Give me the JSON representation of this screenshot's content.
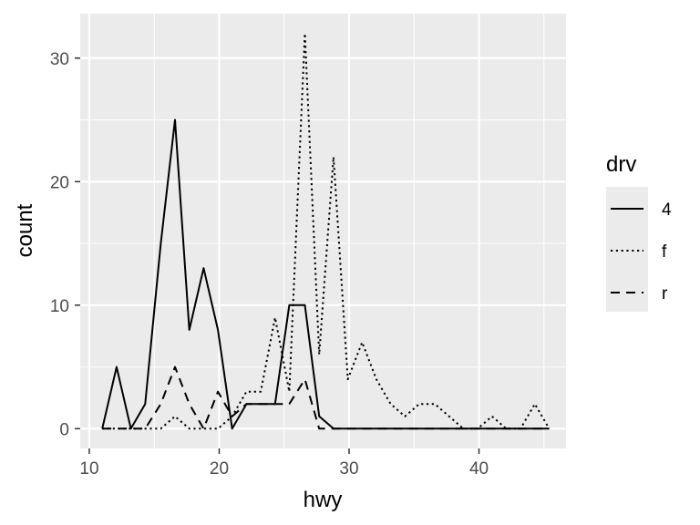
{
  "chart_data": {
    "type": "line",
    "xlabel": "hwy",
    "ylabel": "count",
    "xlim": [
      9.3,
      46.7
    ],
    "ylim": [
      -1.6,
      33.6
    ],
    "x_ticks": [
      10,
      20,
      30,
      40
    ],
    "y_ticks": [
      0,
      10,
      20,
      30
    ],
    "grid": true,
    "legend": {
      "title": "drv",
      "position": "right"
    },
    "x": [
      11.0,
      12.1,
      13.2,
      14.3,
      15.5,
      16.6,
      17.7,
      18.8,
      19.9,
      21.0,
      22.1,
      23.2,
      24.3,
      25.4,
      26.6,
      27.7,
      28.8,
      29.9,
      31.0,
      32.1,
      33.2,
      34.3,
      35.4,
      36.6,
      37.7,
      38.8,
      39.9,
      41.0,
      42.1,
      43.2,
      44.3,
      45.4
    ],
    "series": [
      {
        "name": "4",
        "linetype": "solid",
        "values": [
          0,
          5,
          0,
          2,
          15,
          25,
          8,
          13,
          8,
          0,
          2,
          2,
          2,
          10,
          10,
          1,
          0,
          0,
          0,
          0,
          0,
          0,
          0,
          0,
          0,
          0,
          0,
          0,
          0,
          0,
          0,
          0
        ]
      },
      {
        "name": "f",
        "linetype": "dotted",
        "values": [
          0,
          0,
          0,
          0,
          0,
          1,
          0,
          0,
          0,
          1,
          3,
          3,
          9,
          3,
          32,
          6,
          22,
          4,
          7,
          4,
          2,
          1,
          2,
          2,
          1,
          0,
          0,
          1,
          0,
          0,
          2,
          0
        ]
      },
      {
        "name": "r",
        "linetype": "dashed",
        "values": [
          0,
          0,
          0,
          0,
          2,
          5,
          2,
          0,
          3,
          1,
          2,
          2,
          2,
          2,
          4,
          0,
          0,
          0,
          0,
          0,
          0,
          0,
          0,
          0,
          0,
          0,
          0,
          0,
          0,
          0,
          0,
          0
        ]
      }
    ]
  }
}
